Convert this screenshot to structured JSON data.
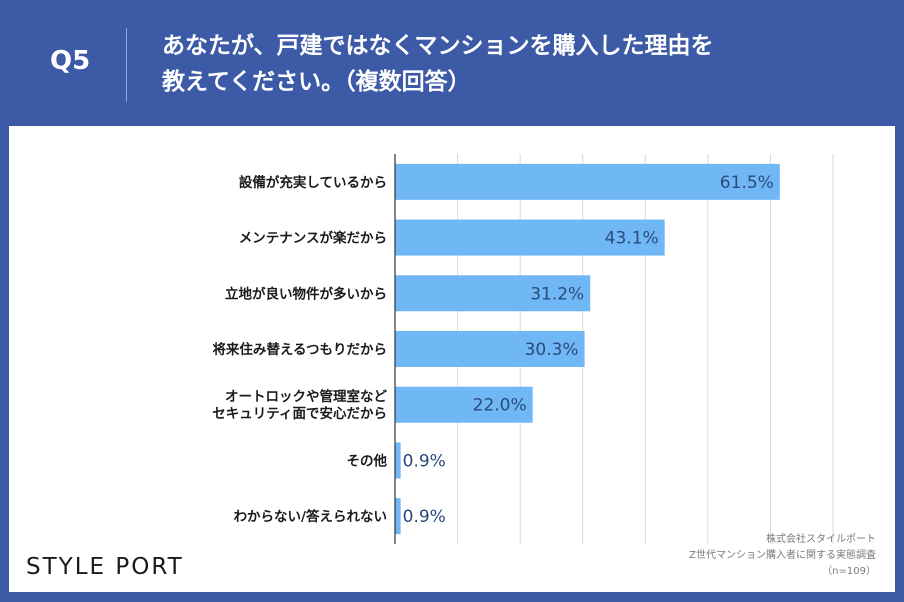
{
  "header": {
    "question_no": "Q5",
    "question_line1": "あなたが、戸建ではなくマンションを購入した理由を",
    "question_line2": "教えてください。（複数回答）"
  },
  "footer": {
    "logo": "STYLE PORT",
    "company": "株式会社スタイルポート",
    "survey": "Z世代マンション購入者に関する実態調査",
    "sample": "（n=109）"
  },
  "colors": {
    "bar": "#70b8f5",
    "accent": "#3d5aa6"
  },
  "chart_data": {
    "type": "bar",
    "orientation": "horizontal",
    "categories": [
      [
        "設備が充実しているから"
      ],
      [
        "メンテナンスが楽だから"
      ],
      [
        "立地が良い物件が多いから"
      ],
      [
        "将来住み替えるつもりだから"
      ],
      [
        "オートロックや管理室など",
        "セキュリティ面で安心だから"
      ],
      [
        "その他"
      ],
      [
        "わからない/答えられない"
      ]
    ],
    "values": [
      61.5,
      43.1,
      31.2,
      30.3,
      22.0,
      0.9,
      0.9
    ],
    "value_labels": [
      "61.5%",
      "43.1%",
      "31.2%",
      "30.3%",
      "22.0%",
      "0.9%",
      "0.9%"
    ],
    "xlim": [
      0,
      70
    ],
    "grid": true
  }
}
